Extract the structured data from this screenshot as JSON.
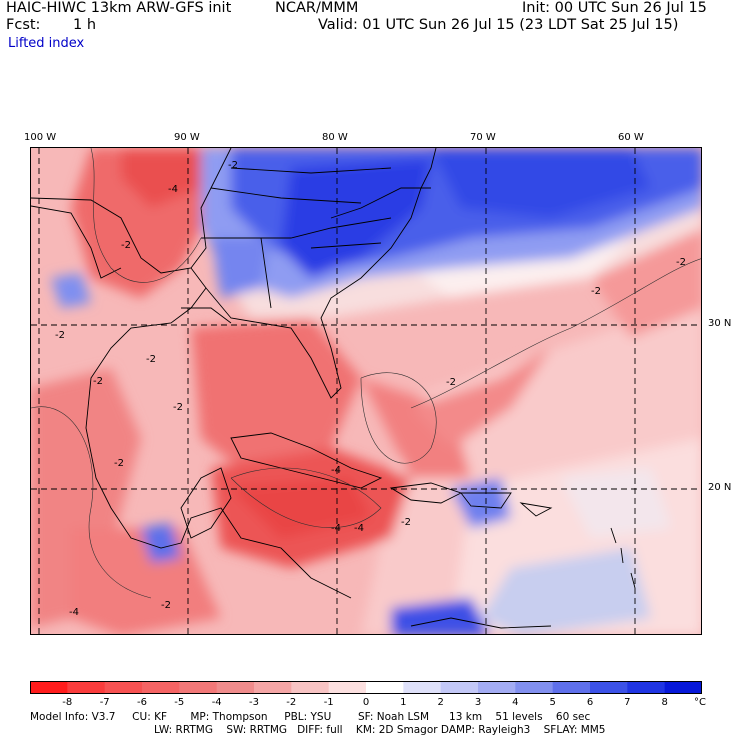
{
  "header": {
    "model_title": "HAIC-HIWC 13km ARW-GFS init",
    "org": "NCAR/MMM",
    "init": "Init: 00 UTC Sun 26 Jul 15",
    "fcst_label": "Fcst:",
    "fcst_value": "1 h",
    "valid": "Valid: 01 UTC Sun 26 Jul 15 (23 LDT Sat 25 Jul 15)",
    "field": "Lifted index"
  },
  "map": {
    "lon_labels": [
      "100 W",
      "90 W",
      "80 W",
      "70 W",
      "60 W"
    ],
    "lat_labels": [
      "30 N",
      "20 N"
    ],
    "contour_label": "-2",
    "contour_label_strong": "-4",
    "contour_label_strong2": "-2",
    "colors": {
      "blue_strong": "#1e32e6",
      "blue_mid": "#5a73f0",
      "blue_light": "#aab4f5",
      "red_light": "#f5aaaa",
      "red_mid": "#f07a7a",
      "red_strong": "#eb4646"
    }
  },
  "colorbar": {
    "labels": [
      "-8",
      "-7",
      "-6",
      "-5",
      "-4",
      "-3",
      "-2",
      "-1",
      "0",
      "1",
      "2",
      "3",
      "4",
      "5",
      "6",
      "7",
      "8"
    ],
    "unit": "°C",
    "colors": [
      "#ff1c1c",
      "#fa3c3c",
      "#f75252",
      "#f56464",
      "#f27878",
      "#f08c8c",
      "#f5a6a6",
      "#f8c4c4",
      "#fce0e0",
      "#ffffff",
      "#dfe1fa",
      "#c3c8f7",
      "#a3acf3",
      "#8290ef",
      "#5f70eb",
      "#3c52e7",
      "#2035e3",
      "#0718d9"
    ]
  },
  "info": {
    "line1": "Model Info: V3.7     CU: KF       MP: Thompson     PBL: YSU        SF: Noah LSM      13 km    51 levels    60 sec",
    "line2": "LW: RRTMG    SW: RRTMG   DIFF: full    KM: 2D Smagor DAMP: Rayleigh3    SFLAY: MM5"
  }
}
